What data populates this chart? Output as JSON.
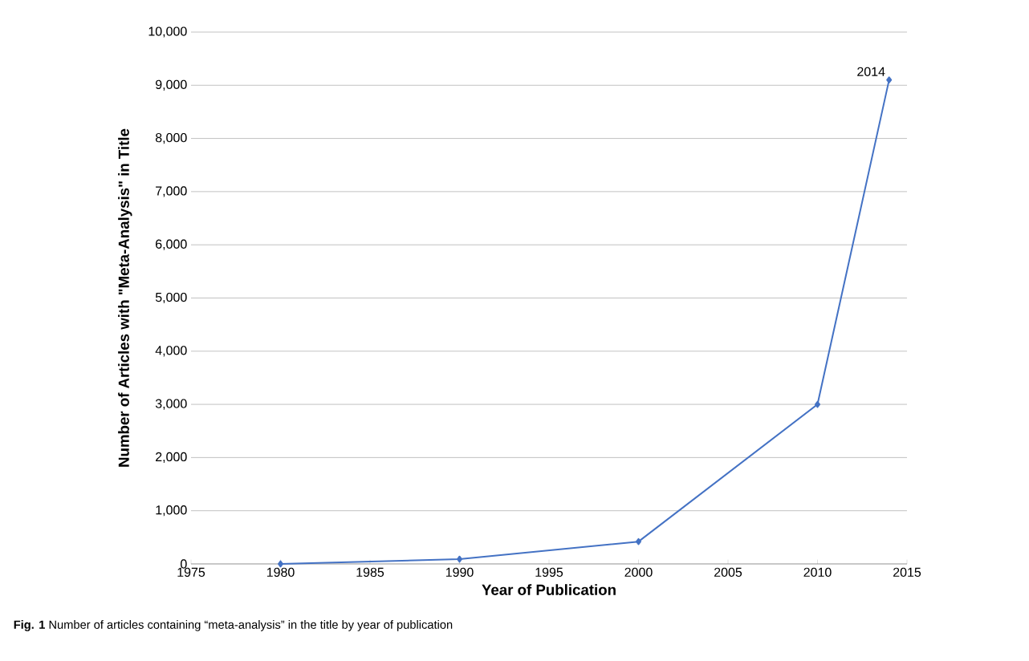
{
  "chart_data": {
    "type": "line",
    "xlabel": "Year of Publication",
    "ylabel": "Number of Articles with \"Meta-Analysis\" in Title",
    "x": [
      1980,
      1990,
      2000,
      2010,
      2014
    ],
    "values": [
      0,
      90,
      420,
      3000,
      9100
    ],
    "color": "#4472c4",
    "marker": "diamond",
    "line_style": "solid",
    "grid": "y",
    "xlim": [
      1975,
      2015
    ],
    "xticks": [
      1975,
      1980,
      1985,
      1990,
      1995,
      2000,
      2005,
      2010,
      2015
    ],
    "ylim": [
      0,
      10000
    ],
    "yticks": [
      0,
      {
        "value": 1000,
        "label": "1,000"
      },
      {
        "value": 2000,
        "label": "2,000"
      },
      {
        "value": 3000,
        "label": "3,000"
      },
      {
        "value": 4000,
        "label": "4,000"
      },
      {
        "value": 5000,
        "label": "5,000"
      },
      {
        "value": 6000,
        "label": "6,000"
      },
      {
        "value": 7000,
        "label": "7,000"
      },
      {
        "value": 8000,
        "label": "8,000"
      },
      {
        "value": 9000,
        "label": "9,000"
      },
      {
        "value": 10000,
        "label": "10,000"
      }
    ],
    "annotations": [
      {
        "text": "2014",
        "x": 2014,
        "y": 9100
      },
      "**Fig. 1** Number of articles containing “meta-analysis” in the title by year of publication"
    ]
  }
}
